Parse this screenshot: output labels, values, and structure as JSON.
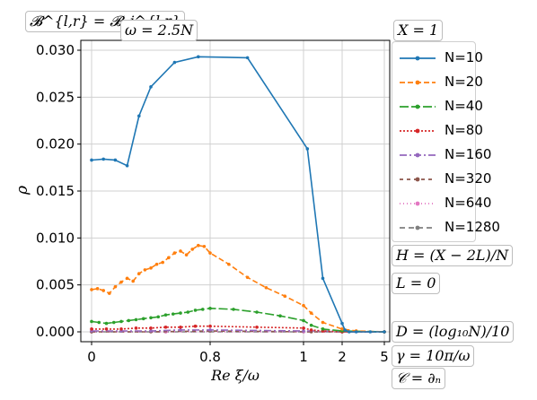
{
  "chart_data": {
    "type": "line",
    "ylabel": "ρ",
    "xlabel": "Re ξ/ω",
    "x_tick_labels": [
      "0",
      "0.8",
      "1",
      "2",
      "5"
    ],
    "y_ticks": [
      0.0,
      0.005,
      0.01,
      0.015,
      0.02,
      0.025,
      0.03
    ],
    "y_tick_labels": [
      "0.000",
      "0.005",
      "0.010",
      "0.015",
      "0.020",
      "0.025",
      "0.030"
    ],
    "ylim": [
      -0.001,
      0.0305
    ],
    "grid": true,
    "legend_position": "right",
    "series": [
      {
        "name": "N=10",
        "color": "#1f77b4",
        "dash": "",
        "marker": "circle",
        "x": [
          0.0,
          0.08,
          0.16,
          0.24,
          0.32,
          0.4,
          0.56,
          0.72,
          0.88,
          1.1,
          1.5,
          2.0,
          2.2,
          2.5,
          3.0,
          4.0,
          5.0
        ],
        "y": [
          0.0183,
          0.0184,
          0.0183,
          0.0177,
          0.023,
          0.0261,
          0.0287,
          0.0293,
          0.0292,
          0.0195,
          0.0057,
          0.0009,
          0.0002,
          0.0,
          0.0,
          0.0,
          0.0
        ]
      },
      {
        "name": "N=20",
        "color": "#ff7f0e",
        "dash": "6,3",
        "marker": "circle",
        "x": [
          0.0,
          0.04,
          0.08,
          0.12,
          0.16,
          0.2,
          0.24,
          0.28,
          0.32,
          0.36,
          0.4,
          0.44,
          0.48,
          0.52,
          0.56,
          0.6,
          0.64,
          0.68,
          0.72,
          0.76,
          0.8,
          0.84,
          0.88,
          0.92,
          0.96,
          1.0,
          1.2,
          1.5,
          2.0,
          3.0,
          5.0
        ],
        "y": [
          0.0045,
          0.0046,
          0.0044,
          0.0041,
          0.0048,
          0.0053,
          0.0057,
          0.0054,
          0.0062,
          0.0066,
          0.0068,
          0.0072,
          0.0074,
          0.0079,
          0.0084,
          0.0086,
          0.0082,
          0.0088,
          0.0092,
          0.0091,
          0.0084,
          0.0072,
          0.0058,
          0.0047,
          0.0038,
          0.0028,
          0.002,
          0.001,
          0.0003,
          0.0001,
          0.0
        ]
      },
      {
        "name": "N=40",
        "color": "#2ca02c",
        "dash": "10,3",
        "marker": "circle",
        "x": [
          0.0,
          0.05,
          0.1,
          0.15,
          0.2,
          0.25,
          0.3,
          0.35,
          0.4,
          0.45,
          0.5,
          0.55,
          0.6,
          0.65,
          0.7,
          0.75,
          0.8,
          0.85,
          0.9,
          0.95,
          1.0,
          1.2,
          1.5,
          2.0,
          5.0
        ],
        "y": [
          0.0011,
          0.001,
          0.0009,
          0.001,
          0.0011,
          0.0012,
          0.0013,
          0.0014,
          0.0015,
          0.0016,
          0.0018,
          0.0019,
          0.002,
          0.0021,
          0.0023,
          0.0024,
          0.0025,
          0.0024,
          0.0021,
          0.0017,
          0.0012,
          0.0007,
          0.0003,
          0.0001,
          0.0
        ]
      },
      {
        "name": "N=80",
        "color": "#d62728",
        "dash": "2,2",
        "marker": "circle",
        "x": [
          0.0,
          0.1,
          0.2,
          0.3,
          0.4,
          0.5,
          0.6,
          0.7,
          0.8,
          0.9,
          1.0,
          1.2,
          1.5,
          2.0,
          5.0
        ],
        "y": [
          0.0003,
          0.0003,
          0.0003,
          0.0004,
          0.0004,
          0.0005,
          0.0005,
          0.0006,
          0.0006,
          0.0005,
          0.0004,
          0.0002,
          0.0001,
          0.0,
          0.0
        ]
      },
      {
        "name": "N=160",
        "color": "#9467bd",
        "dash": "8,3,2,3",
        "marker": "circle",
        "x": [
          0.0,
          0.2,
          0.4,
          0.6,
          0.8,
          1.0,
          1.5,
          2.0,
          5.0
        ],
        "y": [
          0.0001,
          0.0001,
          0.0001,
          0.0002,
          0.0002,
          0.0001,
          0.0001,
          0.0,
          0.0
        ]
      },
      {
        "name": "N=320",
        "color": "#8c564b",
        "dash": "4,4",
        "marker": "circle",
        "x": [
          0.0,
          0.4,
          0.8,
          1.2,
          2.0,
          5.0
        ],
        "y": [
          0.0,
          0.0,
          0.0001,
          0.0,
          0.0,
          0.0
        ]
      },
      {
        "name": "N=640",
        "color": "#e377c2",
        "dash": "1,3",
        "marker": "circle",
        "x": [
          0.0,
          0.5,
          1.0,
          2.0,
          5.0
        ],
        "y": [
          0.0,
          0.0,
          0.0,
          0.0,
          0.0
        ]
      },
      {
        "name": "N=1280",
        "color": "#7f7f7f",
        "dash": "6,4",
        "marker": "circle",
        "x": [
          0.0,
          0.5,
          1.0,
          2.0,
          5.0
        ],
        "y": [
          0.0,
          0.0,
          0.0,
          0.0,
          0.0
        ]
      }
    ]
  },
  "annotations": {
    "boundary": "𝓑^{l,r} = 𝓑_j^{l,r}",
    "omega": "ω = 2.5N",
    "x_param": "X = 1",
    "h_param": "H = (X − 2L)/N",
    "l_param": "L = 0",
    "d_param": "D = (log₁₀N)/10",
    "gamma_param": "γ = 10π/ω",
    "c_param": "𝒞 = ∂ₙ"
  }
}
